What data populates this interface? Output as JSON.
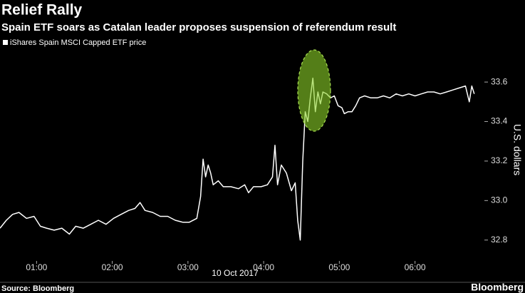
{
  "chart_data": {
    "type": "line",
    "title": "Relief Rally",
    "subtitle": "Spain ETF soars as Catalan leader proposes suspension of referendum result",
    "y_label": "U.S. dollars",
    "x_label": "10 Oct 2017",
    "source": "Source: Bloomberg",
    "brand": "Bloomberg",
    "x": [
      "00:31",
      "00:36",
      "00:41",
      "00:46",
      "00:52",
      "00:58",
      "01:03",
      "01:08",
      "01:14",
      "01:20",
      "01:26",
      "01:31",
      "01:37",
      "01:43",
      "01:49",
      "01:55",
      "02:01",
      "02:07",
      "02:13",
      "02:18",
      "02:22",
      "02:26",
      "02:32",
      "02:38",
      "02:44",
      "02:50",
      "02:56",
      "03:01",
      "03:07",
      "03:10",
      "03:12",
      "03:14",
      "03:16",
      "03:18",
      "03:20",
      "03:24",
      "03:28",
      "03:34",
      "03:40",
      "03:45",
      "03:48",
      "03:52",
      "03:58",
      "04:03",
      "04:07",
      "04:09",
      "04:11",
      "04:14",
      "04:18",
      "04:22",
      "04:25",
      "04:27",
      "04:29",
      "04:31",
      "04:33",
      "04:35",
      "04:37",
      "04:39",
      "04:41",
      "04:43",
      "04:45",
      "04:47",
      "04:50",
      "04:53",
      "04:56",
      "04:59",
      "05:02",
      "05:04",
      "05:07",
      "05:10",
      "05:13",
      "05:16",
      "05:20",
      "05:25",
      "05:30",
      "05:35",
      "05:40",
      "05:45",
      "05:50",
      "05:55",
      "06:00",
      "06:05",
      "06:10",
      "06:15",
      "06:20",
      "06:25",
      "06:30",
      "06:35",
      "06:40",
      "06:43",
      "06:45",
      "06:47"
    ],
    "series": [
      {
        "name": "iShares Spain MSCI Capped ETF price",
        "color": "#ffffff",
        "values": [
          32.86,
          32.9,
          32.93,
          32.94,
          32.91,
          32.92,
          32.87,
          32.86,
          32.85,
          32.86,
          32.83,
          32.87,
          32.86,
          32.88,
          32.9,
          32.88,
          32.91,
          32.93,
          32.95,
          32.96,
          32.99,
          32.95,
          32.94,
          32.92,
          32.92,
          32.9,
          32.89,
          32.89,
          32.91,
          33.02,
          33.21,
          33.12,
          33.18,
          33.14,
          33.08,
          33.1,
          33.07,
          33.07,
          33.06,
          33.08,
          33.04,
          33.07,
          33.07,
          33.08,
          33.12,
          33.28,
          33.08,
          33.18,
          33.14,
          33.05,
          33.09,
          32.9,
          32.8,
          33.2,
          33.45,
          33.4,
          33.52,
          33.62,
          33.45,
          33.55,
          33.49,
          33.55,
          33.54,
          33.52,
          33.53,
          33.48,
          33.47,
          33.44,
          33.45,
          33.45,
          33.48,
          33.52,
          33.53,
          33.52,
          33.52,
          33.53,
          33.52,
          33.54,
          33.53,
          33.54,
          33.53,
          33.54,
          33.55,
          33.55,
          33.54,
          33.55,
          33.56,
          33.57,
          33.58,
          33.5,
          33.58,
          33.54
        ]
      }
    ],
    "xlim": [
      "00:31",
      "06:55"
    ],
    "xticks": [
      "01:00",
      "02:00",
      "03:00",
      "04:00",
      "05:00",
      "06:00"
    ],
    "ylim": [
      32.68,
      33.77
    ],
    "yticks": [
      32.8,
      {
        "value": 33,
        "label": "33.0"
      },
      33.2,
      33.4,
      33.6
    ],
    "grid": false
  }
}
